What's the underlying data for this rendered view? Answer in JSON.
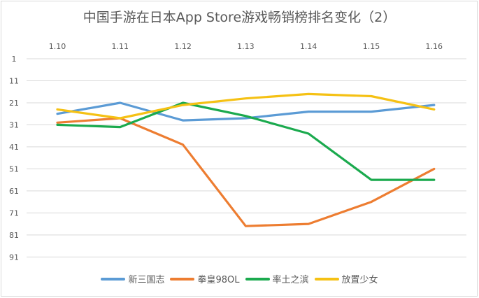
{
  "chart_data": {
    "type": "line",
    "title": "中国手游在日本App Store游戏畅销榜排名变化（2）",
    "xlabel": "",
    "ylabel": "",
    "categories": [
      "1.10",
      "1.11",
      "1.12",
      "1.13",
      "1.14",
      "1.15",
      "1.16"
    ],
    "y_ticks": [
      "1",
      "11",
      "21",
      "31",
      "41",
      "51",
      "61",
      "71",
      "81",
      "91"
    ],
    "ylim": [
      1,
      91
    ],
    "y_inverted": true,
    "x_axis_position": "top",
    "grid": true,
    "legend_position": "bottom",
    "series": [
      {
        "name": "新三国志",
        "color": "#5B9BD5",
        "values": [
          26,
          21,
          29,
          28,
          25,
          25,
          22
        ]
      },
      {
        "name": "拳皇98OL",
        "color": "#ED7D31",
        "values": [
          30,
          28,
          40,
          77,
          76,
          66,
          51
        ]
      },
      {
        "name": "率土之滨",
        "color": "#1BAA4E",
        "values": [
          31,
          32,
          21,
          27,
          35,
          56,
          56
        ]
      },
      {
        "name": "放置少女",
        "color": "#F5C114",
        "values": [
          24,
          28,
          22,
          19,
          17,
          18,
          24
        ]
      }
    ]
  }
}
